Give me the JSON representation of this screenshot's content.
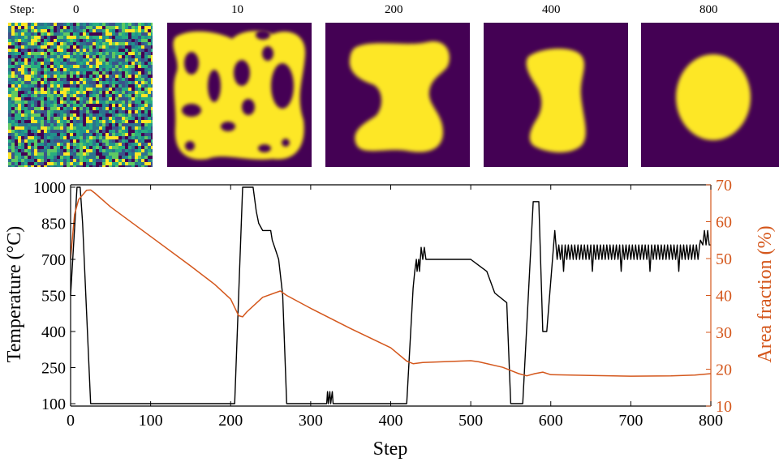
{
  "strip": {
    "label": "Step:",
    "panels": [
      {
        "step": "0",
        "kind": "noise"
      },
      {
        "step": "10",
        "kind": "blobs"
      },
      {
        "step": "200",
        "kind": "c-shape"
      },
      {
        "step": "400",
        "kind": "bean"
      },
      {
        "step": "800",
        "kind": "ellipse"
      }
    ],
    "colors": {
      "background": "#440154",
      "foreground": "#fde725",
      "mid": "#21918c"
    }
  },
  "chart_data": {
    "type": "line",
    "xlabel": "Step",
    "ylabel_left": "Temperature (°C)",
    "ylabel_right": "Area fraction (%)",
    "xlim": [
      0,
      800
    ],
    "ylim_left": [
      90,
      1010
    ],
    "ylim_right": [
      10,
      70
    ],
    "xticks": [
      0,
      100,
      200,
      300,
      400,
      500,
      600,
      700,
      800
    ],
    "yticks_left": [
      100,
      250,
      400,
      550,
      700,
      850,
      1000
    ],
    "yticks_right": [
      10,
      20,
      30,
      40,
      50,
      60,
      70
    ],
    "grid": false,
    "series": [
      {
        "axis": "left",
        "color": "#000000",
        "points": [
          [
            0,
            550
          ],
          [
            8,
            1000
          ],
          [
            12,
            1000
          ],
          [
            15,
            850
          ],
          [
            25,
            100
          ],
          [
            205,
            100
          ],
          [
            215,
            1000
          ],
          [
            228,
            1000
          ],
          [
            232,
            900
          ],
          [
            235,
            850
          ],
          [
            240,
            820
          ],
          [
            250,
            820
          ],
          [
            252,
            780
          ],
          [
            256,
            740
          ],
          [
            260,
            700
          ],
          [
            265,
            550
          ],
          [
            270,
            100
          ],
          [
            320,
            100
          ],
          [
            321,
            150
          ],
          [
            322,
            100
          ],
          [
            324,
            150
          ],
          [
            325,
            100
          ],
          [
            327,
            150
          ],
          [
            328,
            100
          ],
          [
            420,
            100
          ],
          [
            428,
            580
          ],
          [
            430,
            650
          ],
          [
            432,
            700
          ],
          [
            433,
            650
          ],
          [
            435,
            700
          ],
          [
            436,
            650
          ],
          [
            438,
            750
          ],
          [
            440,
            700
          ],
          [
            442,
            750
          ],
          [
            444,
            700
          ],
          [
            500,
            700
          ],
          [
            508,
            680
          ],
          [
            520,
            650
          ],
          [
            530,
            560
          ],
          [
            545,
            520
          ],
          [
            550,
            100
          ],
          [
            565,
            100
          ],
          [
            578,
            940
          ],
          [
            585,
            940
          ],
          [
            590,
            400
          ],
          [
            595,
            400
          ],
          [
            605,
            820
          ],
          [
            608,
            700
          ]
        ],
        "oscillation": {
          "from": 608,
          "to": 787,
          "period": 4,
          "low": 700,
          "high": 760,
          "dip_low": 650
        },
        "tail": [
          [
            787,
            780
          ],
          [
            790,
            760
          ],
          [
            792,
            820
          ],
          [
            794,
            760
          ],
          [
            796,
            820
          ],
          [
            798,
            760
          ],
          [
            800,
            760
          ]
        ]
      },
      {
        "axis": "right",
        "color": "#d4571c",
        "points": [
          [
            0,
            50
          ],
          [
            5,
            62
          ],
          [
            10,
            66
          ],
          [
            20,
            68.5
          ],
          [
            25,
            68.6
          ],
          [
            30,
            67.8
          ],
          [
            50,
            64
          ],
          [
            100,
            56
          ],
          [
            150,
            48
          ],
          [
            180,
            43
          ],
          [
            200,
            39
          ],
          [
            210,
            34.5
          ],
          [
            215,
            34.2
          ],
          [
            220,
            35.5
          ],
          [
            240,
            39.5
          ],
          [
            262,
            41.2
          ],
          [
            270,
            40
          ],
          [
            300,
            36.5
          ],
          [
            350,
            31
          ],
          [
            400,
            25.8
          ],
          [
            420,
            22.2
          ],
          [
            428,
            21.5
          ],
          [
            440,
            21.8
          ],
          [
            500,
            22.3
          ],
          [
            510,
            22
          ],
          [
            540,
            20.5
          ],
          [
            560,
            18.8
          ],
          [
            570,
            18.2
          ],
          [
            580,
            18.8
          ],
          [
            590,
            19.2
          ],
          [
            600,
            18.5
          ],
          [
            650,
            18.3
          ],
          [
            700,
            18.1
          ],
          [
            750,
            18.2
          ],
          [
            780,
            18.4
          ],
          [
            800,
            18.8
          ]
        ]
      }
    ]
  }
}
